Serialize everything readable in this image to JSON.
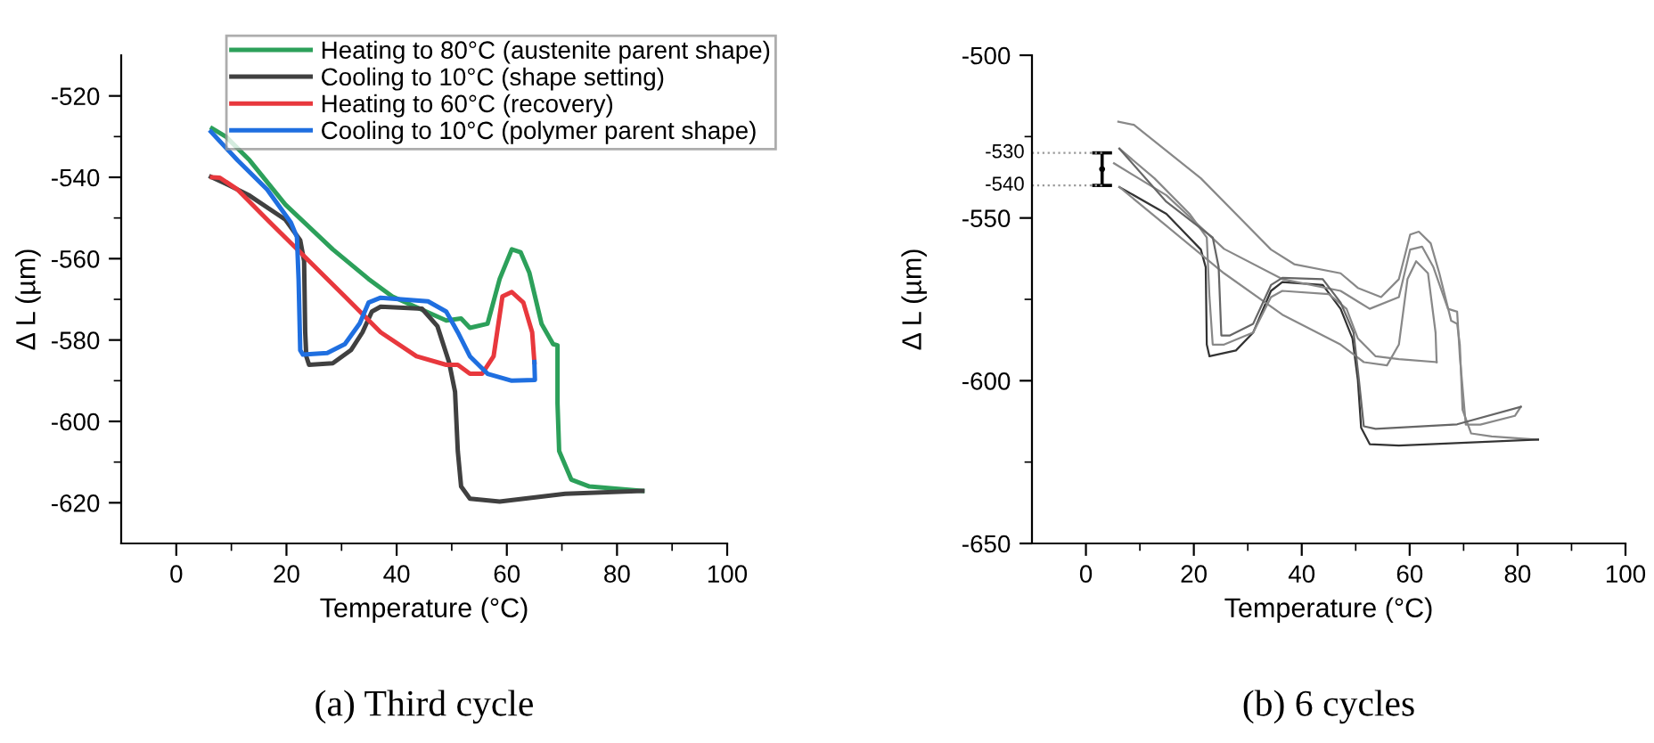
{
  "chart_data": [
    {
      "type": "line",
      "xlabel": "Temperature (°C)",
      "ylabel": "Δ L (µm)",
      "xlim": [
        -10,
        100
      ],
      "ylim": [
        -630,
        -510
      ],
      "xticks": [
        0,
        20,
        40,
        60,
        80,
        100
      ],
      "yticks": [
        -620,
        -600,
        -580,
        -560,
        -540,
        -520
      ],
      "legend": "top right",
      "grid": false,
      "annotations": [
        "(a) Third cycle"
      ],
      "series": [
        {
          "name": "Heating to 80°C (austenite parent shape)",
          "color": "#2ca05a",
          "x": [
            6.5,
            9,
            13.3,
            19.8,
            28.4,
            34.9,
            39.2,
            49,
            51.7,
            53.3,
            56.5,
            58.7,
            60.9,
            62.5,
            64.1,
            66.3,
            68.4,
            69.2,
            69.2,
            69.5,
            71.7,
            75,
            84.6
          ],
          "values": [
            -528,
            -530,
            -535.8,
            -546.7,
            -557.7,
            -565,
            -569.3,
            -575.2,
            -574.7,
            -577,
            -576,
            -565,
            -557.7,
            -558.4,
            -563.5,
            -576,
            -581,
            -581.3,
            -595.6,
            -607.3,
            -614.3,
            -616,
            -617.1
          ]
        },
        {
          "name": "Cooling to 10°C (shape setting)",
          "color": "#404040",
          "x": [
            84.6,
            70.6,
            58.7,
            53.3,
            51.7,
            51.1,
            50.6,
            49.5,
            47.4,
            44.6,
            37.1,
            35.5,
            33.8,
            31.7,
            28.4,
            24.1,
            23.6,
            23.4,
            23.2,
            22.5,
            19.8,
            13.3,
            9,
            6.3
          ],
          "values": [
            -617.1,
            -617.8,
            -619.7,
            -619,
            -616,
            -607.3,
            -592.7,
            -585.4,
            -576.6,
            -572.3,
            -571.8,
            -573,
            -578.1,
            -582.5,
            -585.7,
            -586.1,
            -584,
            -578,
            -560.6,
            -555.5,
            -550.4,
            -544.5,
            -541.6,
            -539.9
          ]
        },
        {
          "name": "Heating to 60°C (recovery)",
          "color": "#e8383d",
          "x": [
            6.5,
            7.9,
            11.1,
            16.5,
            24.1,
            30.6,
            37.1,
            43.6,
            49,
            51.1,
            53.3,
            55.5,
            57.6,
            59.2,
            60.9,
            63,
            64.6,
            65
          ],
          "values": [
            -540,
            -540.1,
            -543,
            -550.4,
            -560.6,
            -569.3,
            -578.1,
            -584,
            -586.1,
            -586.1,
            -588.3,
            -588.3,
            -584,
            -569.3,
            -568.2,
            -570.8,
            -578.1,
            -585.4
          ]
        },
        {
          "name": "Cooling to 10°C (polymer parent shape)",
          "color": "#1f6fe0",
          "x": [
            65,
            65.1,
            60.9,
            56.5,
            53.3,
            51.1,
            49,
            45.7,
            37.1,
            34.9,
            33.3,
            30.6,
            27.4,
            23,
            22.5,
            22.2,
            21.9,
            20.8,
            16.5,
            11.1,
            6.3
          ],
          "values": [
            -585.4,
            -589.8,
            -590,
            -588.3,
            -584,
            -578.1,
            -573,
            -570.5,
            -569.6,
            -570.8,
            -575.9,
            -581,
            -583.2,
            -583.6,
            -582.5,
            -565,
            -554.7,
            -551.1,
            -543,
            -535.8,
            -528.8
          ]
        }
      ]
    },
    {
      "type": "line",
      "xlabel": "Temperature (°C)",
      "ylabel": "Δ L (µm)",
      "xlim": [
        -10,
        100
      ],
      "ylim": [
        -650,
        -500
      ],
      "xticks": [
        0,
        20,
        40,
        60,
        80,
        100
      ],
      "yticks": [
        -650,
        -600,
        -550,
        -500
      ],
      "grid": false,
      "annotations": [
        "(b) 6 cycles"
      ],
      "ref_lines": [
        {
          "axis": "y",
          "value": -530,
          "label": "-530",
          "color": "#999999",
          "line_style": "dotted"
        },
        {
          "axis": "y",
          "value": -540,
          "label": "-540",
          "color": "#999999",
          "line_style": "dotted"
        }
      ],
      "series": [
        {
          "color": "#888888",
          "x": [
            6,
            8.9,
            21.3,
            34.3,
            38.6,
            47.2,
            50.4,
            54.7,
            58,
            60.1,
            61.7,
            63.9,
            65.5,
            67.7,
            68.8,
            69.3,
            69.8,
            71.4,
            75.2,
            83.8
          ],
          "values": [
            -520.4,
            -521.4,
            -537.8,
            -559.7,
            -564.2,
            -567,
            -571.5,
            -574.3,
            -568.8,
            -555.1,
            -554.2,
            -557.8,
            -567,
            -581.6,
            -582.5,
            -588.9,
            -608.9,
            -616.2,
            -617.1,
            -618.1
          ]
        },
        {
          "color": "#333333",
          "x": [
            83.8,
            58,
            52.6,
            51,
            50.4,
            49.4,
            47.2,
            43.9,
            36.4,
            34.3,
            31,
            27.8,
            22.9,
            22.4,
            22.2,
            21.3,
            14.9,
            6.2
          ],
          "values": [
            -618.1,
            -619.9,
            -619.5,
            -614.4,
            -599.8,
            -587,
            -577.9,
            -570.6,
            -569.7,
            -572.4,
            -585.2,
            -590.7,
            -592.5,
            -588.9,
            -565.1,
            -559.7,
            -548.7,
            -540.5
          ]
        },
        {
          "color": "#888888",
          "x": [
            6.2,
            14.9,
            25.6,
            36.4,
            47.2,
            51.5,
            55.8,
            58,
            59.6,
            61.2,
            63.4,
            64.8,
            65
          ],
          "values": [
            -540.5,
            -552.4,
            -567,
            -579.7,
            -588.9,
            -594.3,
            -595.3,
            -588.9,
            -568.8,
            -563.3,
            -567,
            -585.2,
            -594.3
          ]
        },
        {
          "color": "#888888",
          "x": [
            65,
            58,
            53.7,
            50.4,
            48.3,
            45,
            36.4,
            34.3,
            31,
            25.6,
            23.5,
            22.9,
            22.4,
            19.2,
            12.7,
            6.2
          ],
          "values": [
            -594.3,
            -593.4,
            -592.5,
            -587,
            -577.9,
            -573.4,
            -572.4,
            -574.3,
            -585.2,
            -588.9,
            -588.9,
            -574.3,
            -556,
            -548.7,
            -537.8,
            -528.7
          ]
        },
        {
          "color": "#888888",
          "x": [
            5.2,
            14.9,
            25.6,
            36.4,
            47.2,
            52.6,
            58,
            60.1,
            62.3,
            64.4,
            67.1,
            68.8,
            69.3,
            70.4,
            73.1,
            79.5,
            80.6
          ],
          "values": [
            -533.2,
            -543,
            -559.5,
            -568.8,
            -572.4,
            -577.9,
            -574.3,
            -559.7,
            -558.8,
            -565.1,
            -577.9,
            -578.8,
            -592.5,
            -613.5,
            -613.5,
            -610.8,
            -608
          ]
        },
        {
          "color": "#666666",
          "x": [
            80.6,
            68.8,
            53.7,
            51.5,
            50.6,
            49.6,
            47.2,
            43.9,
            36.4,
            34.3,
            31,
            26.7,
            25.1,
            24.6,
            23.5,
            14.9,
            6.2
          ],
          "values": [
            -608,
            -613.4,
            -614.8,
            -614,
            -599.8,
            -585.2,
            -576,
            -568.8,
            -568.4,
            -570.6,
            -582.5,
            -586.1,
            -586.1,
            -565.1,
            -556,
            -545,
            -528.7
          ]
        },
        {
          "type": "scatter",
          "color": "#000000",
          "marker": "none",
          "x": [
            3
          ],
          "values": [
            -535
          ],
          "errors": [
            5
          ]
        }
      ]
    }
  ]
}
